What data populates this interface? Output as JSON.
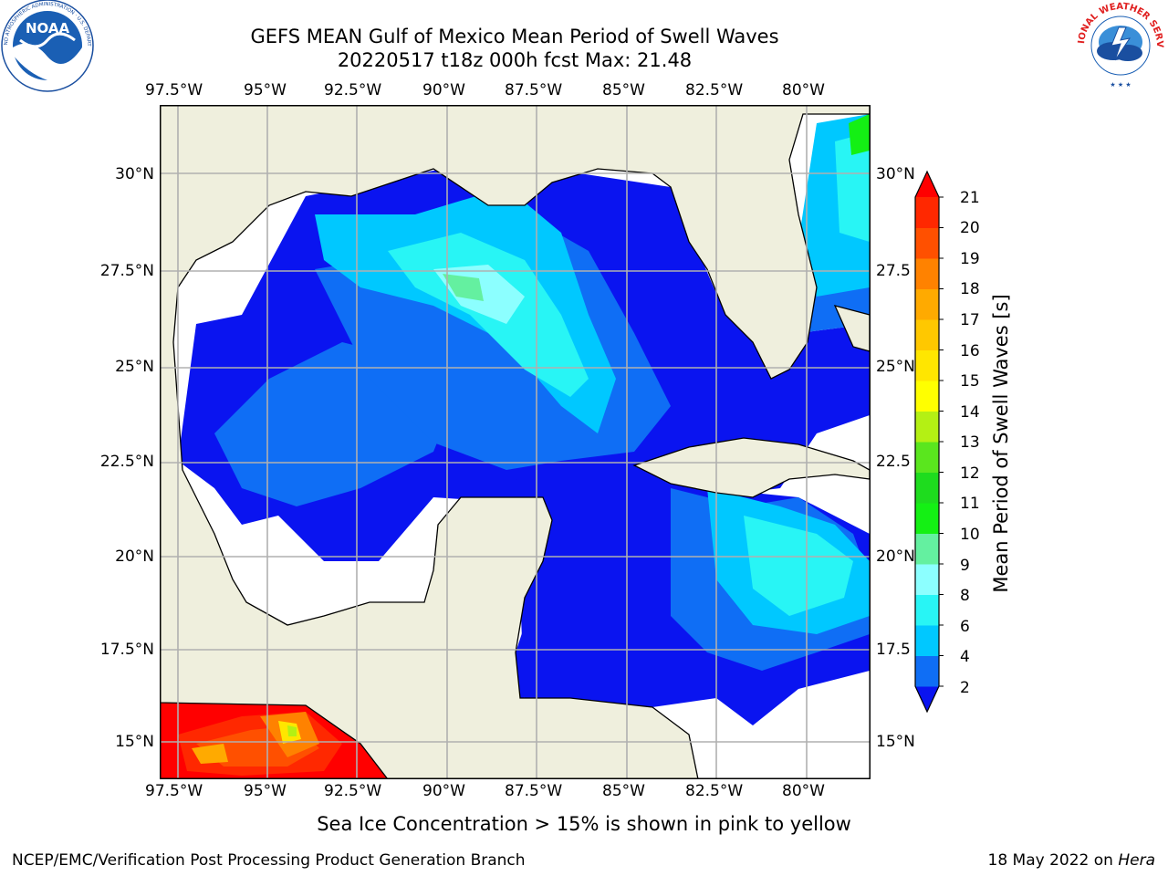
{
  "header": {
    "title_line1": "GEFS MEAN Gulf of Mexico Mean Period of Swell Waves",
    "title_line2": "20220517 t18z 000h fcst   Max: 21.48"
  },
  "logos": {
    "left": "NOAA",
    "left_ring": "NATIONAL OCEANIC AND ATMOSPHERIC ADMINISTRATION · U.S. DEPARTMENT OF COMMERCE",
    "right_ring": "NATIONAL WEATHER SERVICE"
  },
  "map": {
    "lon_ticks": [
      "97.5°W",
      "95°W",
      "92.5°W",
      "90°W",
      "87.5°W",
      "85°W",
      "82.5°W",
      "80°W"
    ],
    "lat_ticks_left": [
      "30°N",
      "27.5°N",
      "25°N",
      "22.5°N",
      "20°N",
      "17.5°N",
      "15°N"
    ],
    "lat_ticks_right": [
      "30°N",
      "27.5",
      "25°N",
      "22.5",
      "20°N",
      "17.5",
      "15°N"
    ],
    "lon_range": [
      -98,
      -78.5
    ],
    "lat_range": [
      14,
      31.8
    ],
    "colors": {
      "land": "#efefdd",
      "ocean_missing": "#ffffff",
      "grid": "#b0b0b0"
    }
  },
  "colorbar": {
    "label": "Mean Period of Swell Waves [s]",
    "levels": [
      "2",
      "4",
      "6",
      "8",
      "9",
      "10",
      "11",
      "12",
      "13",
      "14",
      "15",
      "16",
      "17",
      "18",
      "19",
      "20",
      "21"
    ],
    "colors": [
      "#0a14f0",
      "#0f6ef5",
      "#00c8ff",
      "#28f5f5",
      "#8cffff",
      "#64f0a0",
      "#14f014",
      "#1edc1e",
      "#5ae61e",
      "#b4f014",
      "#ffff00",
      "#ffe600",
      "#ffc800",
      "#ffaa00",
      "#ff8200",
      "#ff5000",
      "#ff2800",
      "#ff0000"
    ]
  },
  "footer": {
    "subtitle": "Sea Ice Concentration > 15% is shown in pink to yellow",
    "left": "NCEP/EMC/Verification Post Processing Product Generation Branch",
    "right_date": "18 May 2022 on ",
    "right_host": "Hera"
  }
}
